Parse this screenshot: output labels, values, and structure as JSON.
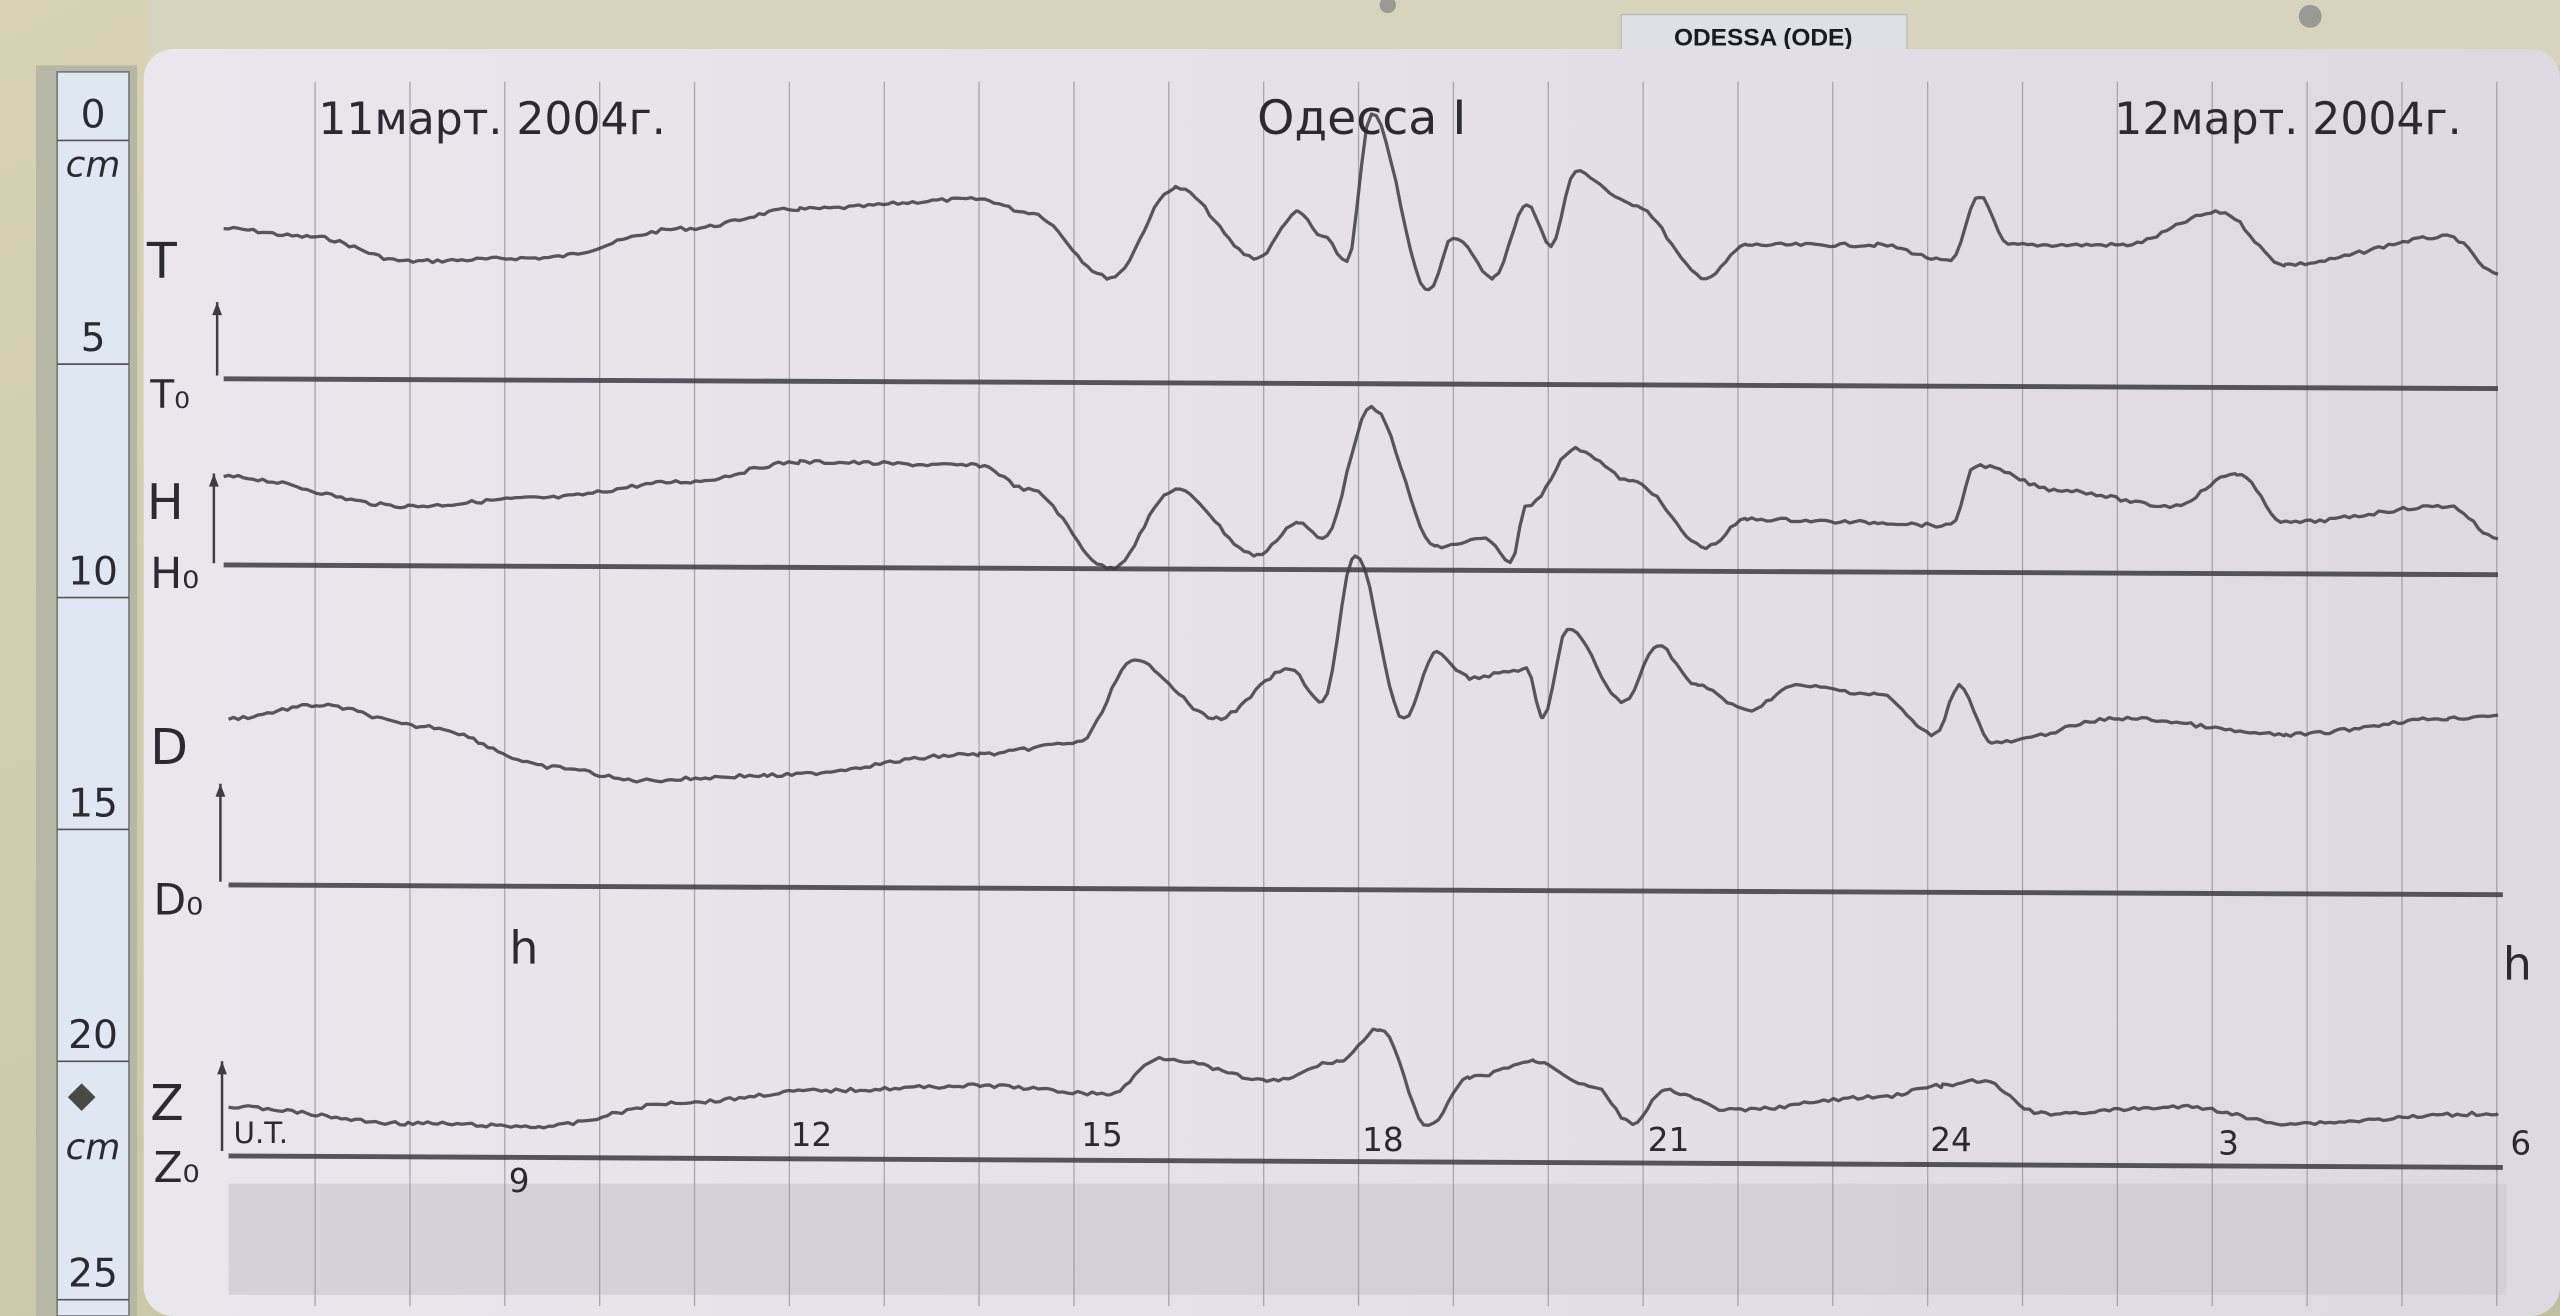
{
  "station_plate": "ODESSA (ODE)",
  "chart_header": {
    "date_left": "11март. 2004г.",
    "station": "Одесса I",
    "date_right": "12март. 2004г."
  },
  "ruler": {
    "unit_top": "cm",
    "unit_bottom": "cm",
    "marks": [
      "0",
      "5",
      "10",
      "15",
      "20",
      "25"
    ]
  },
  "trace_labels": {
    "T": "T",
    "T0": "T₀",
    "H": "H",
    "H0": "H₀",
    "D": "D",
    "D0": "D₀",
    "Z": "Z",
    "Z0": "Z₀"
  },
  "time_axis": {
    "ut_label": "U.T.",
    "hours": [
      "9",
      "12",
      "15",
      "18",
      "21",
      "24",
      "3",
      "6"
    ],
    "h_left": "h",
    "h_right": "h"
  },
  "colors": {
    "paper": "#e6e3ea",
    "trace": "#3c3c42",
    "ruler": "#dfe8f2",
    "background": "#c9c6a8"
  }
}
